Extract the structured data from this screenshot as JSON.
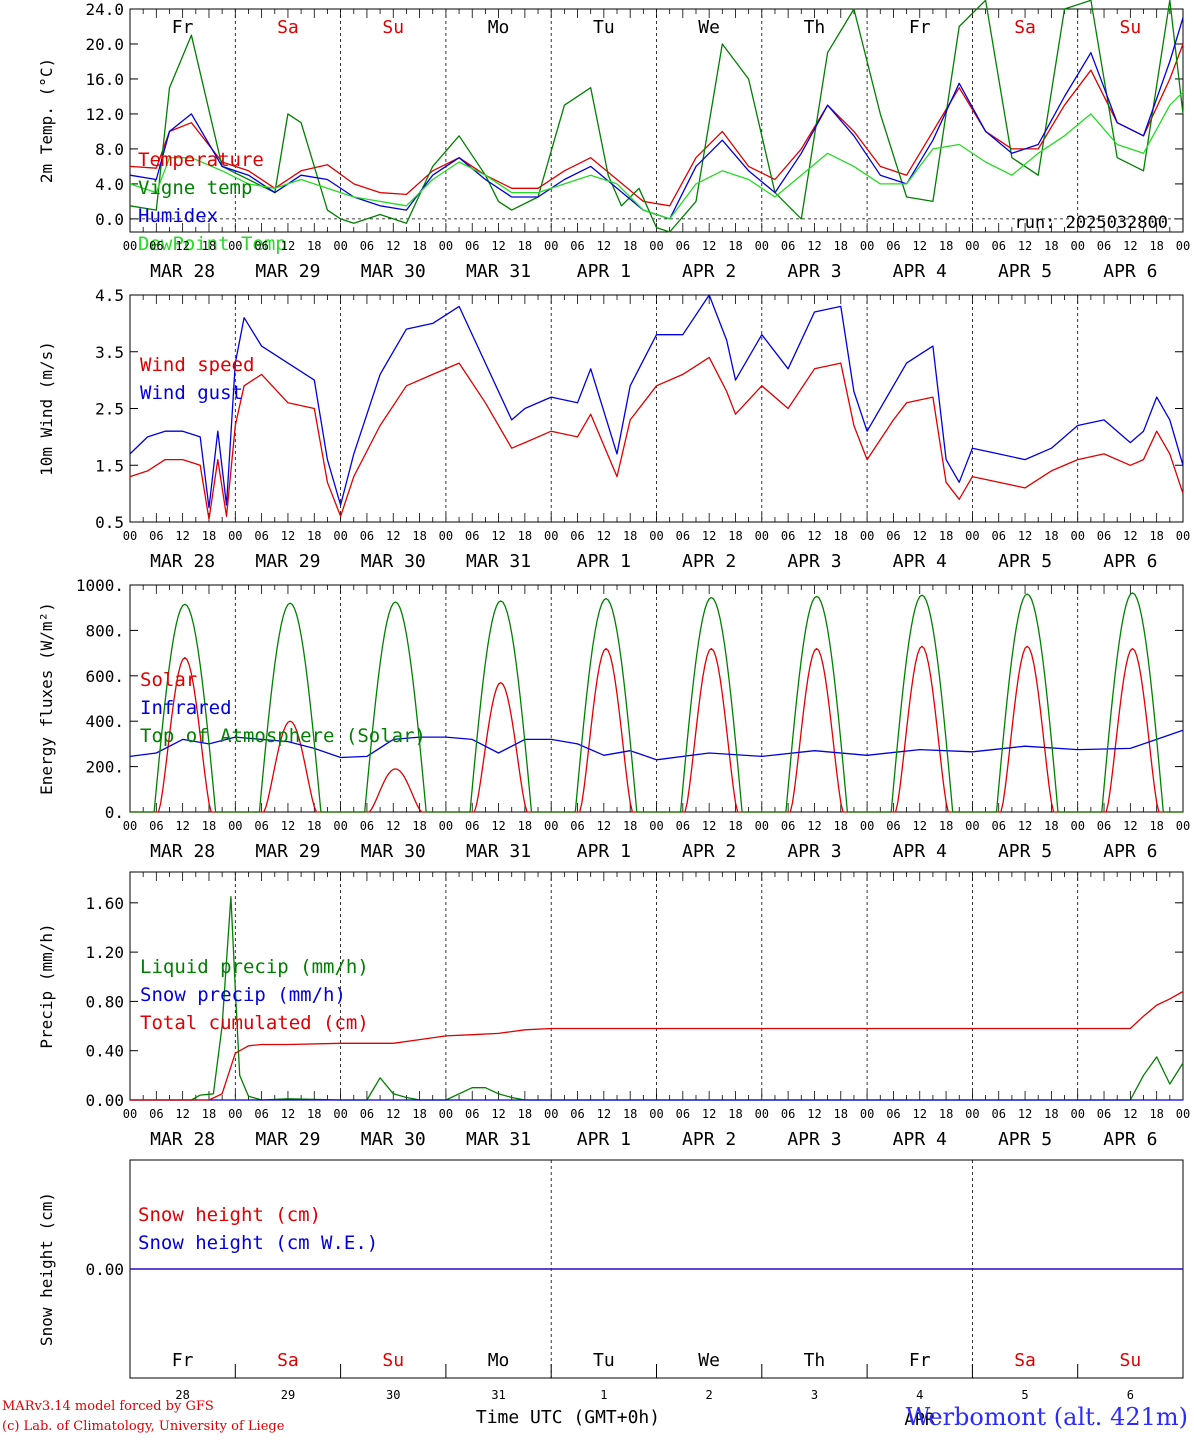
{
  "colors": {
    "red": "#e00000",
    "green": "#008000",
    "blue": "#0000e0",
    "light_green": "#22dd22",
    "station_blue": "#2b2bff"
  },
  "footer": {
    "model": "MARv3.14 model forced by GFS",
    "lab": "(c) Lab. of Climatology, University of Liege",
    "station": "Werbomont (alt. 421m)"
  },
  "chart_data": {
    "type": "line",
    "time_axis": {
      "hour_labels": [
        "00",
        "06",
        "12",
        "18"
      ],
      "date_labels": [
        "MAR 28",
        "MAR 29",
        "MAR 30",
        "MAR 31",
        "APR  1",
        "APR  2",
        "APR  3",
        "APR  4",
        "APR  5",
        "APR  6"
      ],
      "days": [
        "Fr",
        "Sa",
        "Su",
        "Mo",
        "Tu",
        "We",
        "Th",
        "Fr",
        "Sa",
        "Su"
      ],
      "weekend_days": [
        1,
        2,
        8,
        9
      ],
      "day_numbers": [
        "28",
        "29",
        "30",
        "31",
        "1",
        "2",
        "3",
        "4",
        "5",
        "6"
      ],
      "month_label": "APR",
      "xlabel": "Time UTC (GMT+0h)",
      "x_unit": "hours since MAR 28 00 UTC",
      "xlim": [
        0,
        240
      ]
    },
    "panels": [
      {
        "id": "temperature",
        "ylabel": "2m Temp. (°C)",
        "ylim": [
          -1.5,
          24
        ],
        "ticks": [
          0,
          4,
          8,
          12,
          16,
          20,
          24
        ],
        "tick_labels": [
          "0.0",
          "4.0",
          "8.0",
          "12.0",
          "16.0",
          "20.0",
          "24.0"
        ],
        "dashed_zero": true,
        "run_label": "run: 2025032800",
        "series": [
          {
            "name": "Temperature",
            "color": "#e00000",
            "x": [
              0,
              6,
              9,
              14,
              21,
              27,
              33,
              39,
              45,
              51,
              57,
              63,
              69,
              75,
              81,
              87,
              93,
              99,
              105,
              111,
              117,
              123,
              129,
              135,
              141,
              147,
              153,
              159,
              165,
              171,
              177,
              183,
              189,
              195,
              201,
              207,
              213,
              219,
              225,
              231,
              237,
              240
            ],
            "y": [
              6,
              5.8,
              10,
              11,
              6.5,
              5.5,
              3.5,
              5.5,
              6.2,
              4,
              3,
              2.8,
              5.5,
              7,
              5,
              3.5,
              3.5,
              5.5,
              7,
              4.5,
              2,
              1.5,
              7,
              10,
              6,
              4.5,
              8,
              13,
              10,
              6,
              5,
              10,
              15,
              10,
              8,
              8,
              13,
              17,
              11,
              9.5,
              16,
              20
            ]
          },
          {
            "name": "Vigne temp",
            "color": "#008000",
            "x": [
              0,
              6,
              9,
              14,
              21,
              27,
              33,
              36,
              39,
              45,
              48,
              51,
              57,
              63,
              69,
              75,
              81,
              84,
              87,
              93,
              99,
              105,
              109,
              112,
              116,
              120,
              123,
              129,
              135,
              141,
              147,
              153,
              159,
              165,
              171,
              177,
              183,
              189,
              195,
              201,
              207,
              213,
              219,
              225,
              231,
              237,
              240
            ],
            "y": [
              1.5,
              1,
              15,
              21,
              6,
              4.5,
              3,
              12,
              11,
              1,
              0,
              -0.5,
              0.5,
              -0.5,
              6,
              9.5,
              5,
              2,
              1,
              2.5,
              13,
              15,
              5,
              1.5,
              3.5,
              -1,
              -1.5,
              2,
              20,
              16,
              3,
              0,
              19,
              24,
              12,
              2.5,
              2,
              22,
              25,
              7,
              5,
              24,
              25,
              7,
              5.5,
              25,
              12
            ]
          },
          {
            "name": "Humidex",
            "color": "#0000e0",
            "x": [
              0,
              6,
              9,
              14,
              21,
              27,
              33,
              39,
              45,
              51,
              57,
              63,
              69,
              75,
              81,
              87,
              93,
              99,
              105,
              111,
              117,
              123,
              129,
              135,
              141,
              147,
              153,
              159,
              165,
              171,
              177,
              183,
              189,
              195,
              201,
              207,
              213,
              219,
              225,
              231,
              237,
              240
            ],
            "y": [
              5,
              4.5,
              10,
              12,
              6,
              5,
              3,
              5,
              4.5,
              2.5,
              1.5,
              1,
              5,
              7,
              4.5,
              2.5,
              2.5,
              4.5,
              6,
              3.5,
              1,
              0,
              6,
              9,
              5.5,
              3,
              7.5,
              13,
              9.5,
              5,
              4,
              9,
              15.5,
              10,
              7.5,
              8.5,
              14,
              19,
              11,
              9.5,
              18,
              23
            ]
          },
          {
            "name": "DewPoint Temp",
            "color": "#22dd22",
            "x": [
              0,
              6,
              9,
              14,
              21,
              27,
              33,
              39,
              45,
              51,
              57,
              63,
              69,
              75,
              81,
              87,
              93,
              99,
              105,
              111,
              117,
              123,
              129,
              135,
              141,
              147,
              153,
              159,
              165,
              171,
              177,
              183,
              189,
              195,
              201,
              207,
              213,
              219,
              225,
              231,
              237,
              240
            ],
            "y": [
              4,
              3,
              7,
              7,
              5.5,
              4,
              3.5,
              4.5,
              3.5,
              2.5,
              2,
              1.5,
              4.5,
              6.5,
              5,
              3,
              3,
              4,
              5,
              4,
              1,
              0,
              4,
              5.5,
              4.5,
              2.5,
              5,
              7.5,
              6,
              4,
              4,
              8,
              8.5,
              6.5,
              5,
              7.5,
              9.5,
              12,
              8.5,
              7.5,
              13,
              14.5
            ]
          }
        ]
      },
      {
        "id": "wind",
        "ylabel": "10m Wind (m/s)",
        "ylim": [
          0.5,
          4.5
        ],
        "ticks": [
          0.5,
          1.5,
          2.5,
          3.5,
          4.5
        ],
        "tick_labels": [
          "0.5",
          "1.5",
          "2.5",
          "3.5",
          "4.5"
        ],
        "series": [
          {
            "name": "Wind speed",
            "color": "#e00000",
            "x": [
              0,
              4,
              8,
              12,
              16,
              18,
              20,
              22,
              24,
              26,
              30,
              36,
              42,
              45,
              48,
              51,
              57,
              63,
              69,
              75,
              81,
              87,
              90,
              96,
              102,
              105,
              111,
              114,
              120,
              126,
              132,
              136,
              138,
              144,
              150,
              156,
              162,
              165,
              168,
              174,
              177,
              183,
              186,
              189,
              192,
              198,
              204,
              210,
              216,
              222,
              228,
              231,
              234,
              237,
              240
            ],
            "y": [
              1.3,
              1.4,
              1.6,
              1.6,
              1.5,
              0.55,
              1.6,
              0.6,
              2.2,
              2.9,
              3.1,
              2.6,
              2.5,
              1.2,
              0.6,
              1.3,
              2.2,
              2.9,
              3.1,
              3.3,
              2.6,
              1.8,
              1.9,
              2.1,
              2,
              2.4,
              1.3,
              2.3,
              2.9,
              3.1,
              3.4,
              2.8,
              2.4,
              2.9,
              2.5,
              3.2,
              3.3,
              2.2,
              1.6,
              2.3,
              2.6,
              2.7,
              1.2,
              0.9,
              1.3,
              1.2,
              1.1,
              1.4,
              1.6,
              1.7,
              1.5,
              1.6,
              2.1,
              1.7,
              1
            ]
          },
          {
            "name": "Wind gust",
            "color": "#0000e0",
            "x": [
              0,
              4,
              8,
              12,
              16,
              18,
              20,
              22,
              24,
              26,
              30,
              36,
              42,
              45,
              48,
              51,
              57,
              63,
              69,
              75,
              81,
              87,
              90,
              96,
              102,
              105,
              111,
              114,
              120,
              126,
              132,
              136,
              138,
              144,
              150,
              156,
              162,
              165,
              168,
              174,
              177,
              183,
              186,
              189,
              192,
              198,
              204,
              210,
              216,
              222,
              228,
              231,
              234,
              237,
              240
            ],
            "y": [
              1.7,
              2,
              2.1,
              2.1,
              2,
              0.75,
              2.1,
              0.8,
              3.3,
              4.1,
              3.6,
              3.3,
              3,
              1.6,
              0.8,
              1.7,
              3.1,
              3.9,
              4,
              4.3,
              3.3,
              2.3,
              2.5,
              2.7,
              2.6,
              3.2,
              1.7,
              2.9,
              3.8,
              3.8,
              4.5,
              3.7,
              3,
              3.8,
              3.2,
              4.2,
              4.3,
              2.8,
              2.1,
              2.9,
              3.3,
              3.6,
              1.6,
              1.2,
              1.8,
              1.7,
              1.6,
              1.8,
              2.2,
              2.3,
              1.9,
              2.1,
              2.7,
              2.3,
              1.5
            ]
          }
        ]
      },
      {
        "id": "energy",
        "ylabel": "Energy fluxes (W/m²)",
        "ylim": [
          0,
          1000
        ],
        "ticks": [
          0,
          200,
          400,
          600,
          800,
          1000
        ],
        "tick_labels": [
          "0.",
          "200.",
          "400.",
          "600.",
          "800.",
          "1000."
        ],
        "series": [
          {
            "name": "Solar",
            "color": "#e00000",
            "curve": "solar",
            "peaks": [
              680,
              400,
              190,
              570,
              720,
              720,
              720,
              730,
              730,
              720
            ]
          },
          {
            "name": "Infrared",
            "color": "#0000e0",
            "x": [
              0,
              6,
              12,
              18,
              24,
              30,
              36,
              42,
              48,
              54,
              60,
              66,
              72,
              78,
              84,
              90,
              96,
              102,
              108,
              114,
              120,
              132,
              144,
              156,
              168,
              180,
              192,
              204,
              216,
              228,
              240
            ],
            "y": [
              245,
              260,
              320,
              300,
              330,
              320,
              310,
              280,
              240,
              245,
              320,
              330,
              330,
              320,
              260,
              320,
              320,
              300,
              250,
              270,
              230,
              260,
              245,
              270,
              250,
              275,
              265,
              290,
              275,
              280,
              360
            ]
          },
          {
            "name": "Top of Atmosphere (Solar)",
            "color": "#008000",
            "curve": "sin",
            "peaks": [
              915,
              920,
              925,
              930,
              940,
              945,
              950,
              955,
              960,
              965
            ]
          }
        ]
      },
      {
        "id": "precip",
        "ylabel": "Precip (mm/h)",
        "ylim": [
          0,
          1.85
        ],
        "ticks": [
          0,
          0.4,
          0.8,
          1.2,
          1.6
        ],
        "tick_labels": [
          "0.00",
          "0.40",
          "0.80",
          "1.20",
          "1.60"
        ],
        "series": [
          {
            "name": "Liquid precip (mm/h)",
            "color": "#008000",
            "x": [
              0,
              14,
              16,
              19,
              21,
              23,
              24,
              25,
              27,
              30,
              36,
              48,
              54,
              57,
              60,
              63,
              66,
              72,
              78,
              81,
              84,
              87,
              90,
              96,
              228,
              231,
              234,
              237,
              240
            ],
            "y": [
              0,
              0,
              0.04,
              0.05,
              0.6,
              1.65,
              0.9,
              0.2,
              0.03,
              0,
              0.01,
              0,
              0,
              0.18,
              0.05,
              0.02,
              0,
              0,
              0.1,
              0.1,
              0.05,
              0.02,
              0,
              0,
              0,
              0.2,
              0.35,
              0.13,
              0.3
            ]
          },
          {
            "name": "Snow precip (mm/h)",
            "color": "#0000e0",
            "x": [
              0,
              240
            ],
            "y": [
              0,
              0
            ]
          },
          {
            "name": "Total cumulated (cm)",
            "color": "#e00000",
            "x": [
              0,
              18,
              21,
              24,
              27,
              30,
              36,
              48,
              60,
              66,
              72,
              78,
              84,
              90,
              96,
              228,
              231,
              234,
              237,
              240
            ],
            "y": [
              0,
              0,
              0.05,
              0.38,
              0.44,
              0.45,
              0.45,
              0.46,
              0.46,
              0.49,
              0.52,
              0.53,
              0.54,
              0.57,
              0.58,
              0.58,
              0.68,
              0.77,
              0.82,
              0.88
            ]
          }
        ]
      },
      {
        "id": "snow",
        "ylabel": "Snow height (cm)",
        "ylim": [
          -1,
          1
        ],
        "ticks": [
          0
        ],
        "tick_labels": [
          "0.00"
        ],
        "series": [
          {
            "name": "Snow height (cm)",
            "color": "#e00000",
            "x": [
              0,
              240
            ],
            "y": [
              0,
              0
            ]
          },
          {
            "name": "Snow height (cm W.E.)",
            "color": "#0000e0",
            "x": [
              0,
              240
            ],
            "y": [
              0,
              0
            ]
          }
        ]
      }
    ]
  }
}
